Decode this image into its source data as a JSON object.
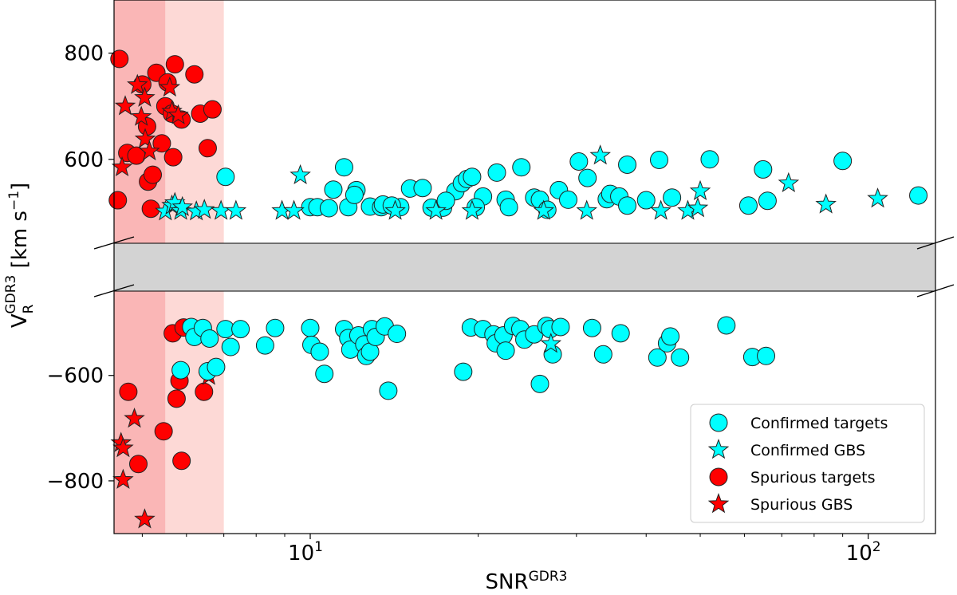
{
  "chart_data": {
    "type": "scatter",
    "x_scale": "log",
    "xlim": [
      4.45,
      132
    ],
    "top_panel_ylim": [
      442,
      900
    ],
    "bottom_panel_ylim": [
      -900,
      -440
    ],
    "broken_axis_gap_color": "#d3d3d3",
    "xlabel": "SNR",
    "xlabel_superscript": "GDR3",
    "ylabel": "V",
    "ylabel_subscript": "R",
    "ylabel_superscript": "GDR3",
    "ylabel_units": " [km s",
    "ylabel_units_exp": "−1",
    "ylabel_units_close": "]",
    "x_ticks": [
      {
        "value": 10,
        "base": "10",
        "exp": "1"
      },
      {
        "value": 100,
        "base": "10",
        "exp": "2"
      }
    ],
    "top_y_ticks": [
      {
        "value": 800,
        "label": "800"
      },
      {
        "value": 600,
        "label": "600"
      }
    ],
    "bottom_y_ticks": [
      {
        "value": -600,
        "label": "−600"
      },
      {
        "value": -800,
        "label": "−800"
      }
    ],
    "shaded_regions": [
      {
        "x_from": 4.45,
        "x_to": 5.5,
        "color": "#fab6b6"
      },
      {
        "x_from": 5.5,
        "x_to": 7.0,
        "color": "#fdd9d6"
      }
    ],
    "colors": {
      "confirmed": "#00ffff",
      "spurious": "#ff0000",
      "edge": "#222222"
    },
    "legend": {
      "position": "lower-right",
      "items": [
        {
          "label": "Confirmed targets",
          "marker": "circle",
          "color": "#00ffff"
        },
        {
          "label": "Confirmed GBS",
          "marker": "star",
          "color": "#00ffff"
        },
        {
          "label": "Spurious targets",
          "marker": "circle",
          "color": "#ff0000"
        },
        {
          "label": "Spurious GBS",
          "marker": "star",
          "color": "#ff0000"
        }
      ]
    },
    "series": [
      {
        "name": "Spurious targets",
        "marker": "circle",
        "points": [
          [
            4.55,
            789
          ],
          [
            4.7,
            612
          ],
          [
            4.88,
            607
          ],
          [
            5.0,
            741
          ],
          [
            5.1,
            662
          ],
          [
            5.12,
            558
          ],
          [
            5.18,
            507
          ],
          [
            5.22,
            571
          ],
          [
            5.3,
            763
          ],
          [
            5.42,
            630
          ],
          [
            5.5,
            700
          ],
          [
            5.55,
            745
          ],
          [
            5.65,
            686
          ],
          [
            5.68,
            604
          ],
          [
            5.72,
            779
          ],
          [
            5.88,
            675
          ],
          [
            6.2,
            760
          ],
          [
            6.35,
            686
          ],
          [
            6.55,
            621
          ],
          [
            6.68,
            694
          ],
          [
            4.52,
            523
          ],
          [
            5.67,
            -520
          ],
          [
            5.93,
            -509
          ],
          [
            4.72,
            -631
          ],
          [
            4.92,
            -768
          ],
          [
            5.46,
            -706
          ],
          [
            5.76,
            -644
          ],
          [
            5.83,
            -610
          ],
          [
            5.88,
            -762
          ],
          [
            6.45,
            -631
          ]
        ]
      },
      {
        "name": "Spurious GBS",
        "marker": "star",
        "points": [
          [
            4.6,
            585
          ],
          [
            4.66,
            700
          ],
          [
            4.9,
            740
          ],
          [
            4.98,
            680
          ],
          [
            5.06,
            638
          ],
          [
            5.15,
            615
          ],
          [
            5.05,
            716
          ],
          [
            5.6,
            735
          ],
          [
            5.65,
            690
          ],
          [
            5.8,
            683
          ],
          [
            4.58,
            -728
          ],
          [
            4.62,
            -738
          ],
          [
            4.62,
            -798
          ],
          [
            4.84,
            -682
          ],
          [
            5.05,
            -873
          ],
          [
            6.58,
            -601
          ]
        ]
      },
      {
        "name": "Confirmed targets",
        "marker": "circle",
        "points": [
          [
            7.05,
            567
          ],
          [
            10.0,
            510
          ],
          [
            10.3,
            510
          ],
          [
            10.8,
            508
          ],
          [
            11.0,
            543
          ],
          [
            11.5,
            585
          ],
          [
            11.7,
            510
          ],
          [
            12.1,
            542
          ],
          [
            12.8,
            511
          ],
          [
            13.4,
            510
          ],
          [
            13.5,
            515
          ],
          [
            14.5,
            510
          ],
          [
            15.1,
            545
          ],
          [
            15.9,
            546
          ],
          [
            16.5,
            509
          ],
          [
            17.3,
            509
          ],
          [
            18.2,
            540
          ],
          [
            18.7,
            555
          ],
          [
            19.1,
            563
          ],
          [
            19.5,
            567
          ],
          [
            20.4,
            530
          ],
          [
            21.6,
            575
          ],
          [
            22.4,
            524
          ],
          [
            22.7,
            510
          ],
          [
            23.9,
            585
          ],
          [
            25.2,
            528
          ],
          [
            25.8,
            524
          ],
          [
            26.6,
            505
          ],
          [
            27.9,
            542
          ],
          [
            29.0,
            524
          ],
          [
            30.3,
            596
          ],
          [
            31.4,
            565
          ],
          [
            34.0,
            525
          ],
          [
            34.5,
            535
          ],
          [
            35.8,
            530
          ],
          [
            37.0,
            590
          ],
          [
            42.2,
            599
          ],
          [
            44.5,
            528
          ],
          [
            52.0,
            600
          ],
          [
            61.0,
            513
          ],
          [
            64.8,
            581
          ],
          [
            66.0,
            522
          ],
          [
            90.0,
            597
          ],
          [
            123.0,
            532
          ],
          [
            37.0,
            513
          ],
          [
            40.0,
            523
          ],
          [
            17.5,
            522
          ],
          [
            19.8,
            510
          ],
          [
            14.0,
            513
          ],
          [
            12.0,
            533
          ],
          [
            6.12,
            -508
          ],
          [
            6.2,
            -527
          ],
          [
            6.42,
            -510
          ],
          [
            6.6,
            -530
          ],
          [
            6.55,
            -592
          ],
          [
            6.78,
            -584
          ],
          [
            7.05,
            -512
          ],
          [
            7.2,
            -546
          ],
          [
            7.5,
            -512
          ],
          [
            8.3,
            -543
          ],
          [
            8.65,
            -510
          ],
          [
            10.0,
            -510
          ],
          [
            10.05,
            -542
          ],
          [
            10.4,
            -555
          ],
          [
            10.6,
            -597
          ],
          [
            11.5,
            -512
          ],
          [
            11.7,
            -529
          ],
          [
            11.8,
            -551
          ],
          [
            12.2,
            -524
          ],
          [
            12.5,
            -541
          ],
          [
            12.6,
            -563
          ],
          [
            12.8,
            -555
          ],
          [
            12.9,
            -512
          ],
          [
            13.1,
            -527
          ],
          [
            13.6,
            -507
          ],
          [
            13.8,
            -629
          ],
          [
            14.3,
            -521
          ],
          [
            18.8,
            -593
          ],
          [
            19.4,
            -509
          ],
          [
            20.4,
            -512
          ],
          [
            21.3,
            -522
          ],
          [
            21.5,
            -539
          ],
          [
            22.2,
            -524
          ],
          [
            22.4,
            -553
          ],
          [
            23.1,
            -506
          ],
          [
            23.8,
            -512
          ],
          [
            24.2,
            -532
          ],
          [
            25.2,
            -522
          ],
          [
            25.8,
            -616
          ],
          [
            26.5,
            -506
          ],
          [
            26.9,
            -512
          ],
          [
            27.2,
            -560
          ],
          [
            28.1,
            -508
          ],
          [
            32.0,
            -510
          ],
          [
            33.5,
            -560
          ],
          [
            36.0,
            -520
          ],
          [
            41.9,
            -566
          ],
          [
            43.6,
            -539
          ],
          [
            44.2,
            -526
          ],
          [
            46.0,
            -566
          ],
          [
            55.7,
            -505
          ],
          [
            62.0,
            -565
          ],
          [
            65.6,
            -563
          ],
          [
            5.86,
            -590
          ]
        ]
      },
      {
        "name": "Confirmed GBS",
        "marker": "star",
        "points": [
          [
            5.5,
            502
          ],
          [
            5.65,
            513
          ],
          [
            5.72,
            518
          ],
          [
            5.86,
            503
          ],
          [
            5.9,
            510
          ],
          [
            6.25,
            502
          ],
          [
            6.46,
            505
          ],
          [
            6.92,
            503
          ],
          [
            7.36,
            503
          ],
          [
            8.9,
            503
          ],
          [
            9.35,
            503
          ],
          [
            9.6,
            570
          ],
          [
            14.2,
            503
          ],
          [
            16.8,
            503
          ],
          [
            19.5,
            503
          ],
          [
            26.2,
            503
          ],
          [
            31.3,
            503
          ],
          [
            33.1,
            607
          ],
          [
            42.5,
            503
          ],
          [
            47.5,
            503
          ],
          [
            49.5,
            508
          ],
          [
            50.0,
            540
          ],
          [
            72.0,
            555
          ],
          [
            84.0,
            515
          ],
          [
            104.0,
            526
          ],
          [
            27.0,
            -540
          ]
        ]
      }
    ]
  }
}
